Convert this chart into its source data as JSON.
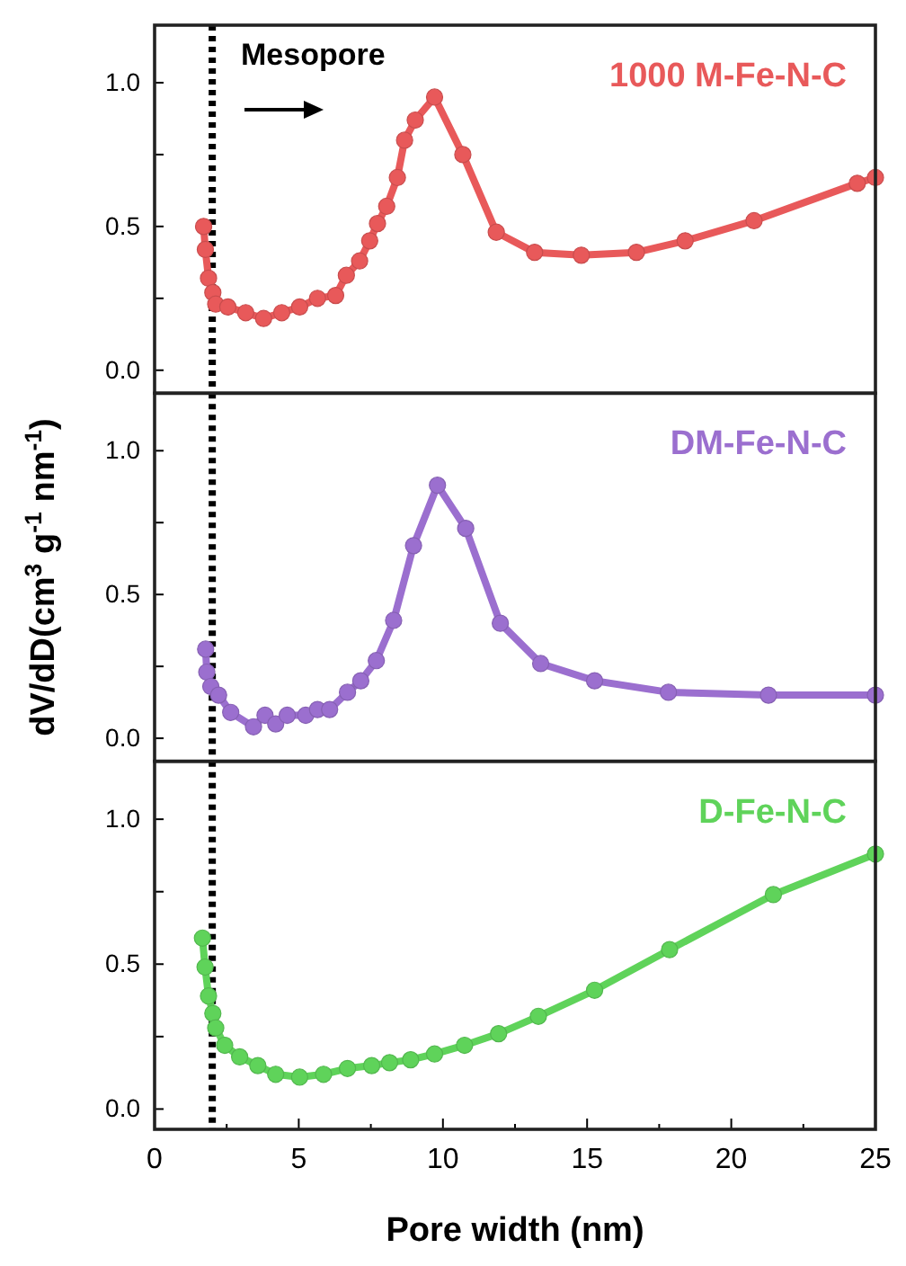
{
  "chart_data": [
    {
      "type": "line",
      "xlim": [
        0,
        25
      ],
      "ylim": [
        -0.08,
        1.2
      ],
      "yticks": [
        {
          "value": 0,
          "label": "0.0"
        },
        {
          "value": 0.25,
          "label": null
        },
        {
          "value": 0.5,
          "label": "0.5"
        },
        {
          "value": 0.75,
          "label": null
        },
        {
          "value": 1,
          "label": "1.0"
        }
      ],
      "tick_labels": "y",
      "marker": "circle",
      "grid": false,
      "annotations": [
        "Mesopore"
      ],
      "ref_lines": [
        {
          "axis": "x",
          "value": 2,
          "color": "#000000",
          "line_style": "dotted"
        }
      ],
      "series": [
        {
          "name": "1000 M-Fe-N-C",
          "color": "#e8595a",
          "x": [
            1.7,
            1.76,
            1.87,
            2.02,
            2.12,
            2.54,
            3.16,
            3.78,
            4.41,
            5.03,
            5.65,
            6.28,
            6.65,
            7.11,
            7.46,
            7.73,
            8.05,
            8.42,
            8.67,
            9.04,
            9.71,
            10.69,
            11.85,
            13.18,
            14.8,
            16.71,
            18.4,
            20.79,
            24.37,
            25
          ],
          "values": [
            0.5,
            0.42,
            0.32,
            0.27,
            0.23,
            0.22,
            0.2,
            0.18,
            0.2,
            0.22,
            0.25,
            0.26,
            0.33,
            0.38,
            0.45,
            0.51,
            0.57,
            0.67,
            0.8,
            0.87,
            0.95,
            0.75,
            0.48,
            0.41,
            0.4,
            0.41,
            0.45,
            0.52,
            0.65,
            0.67
          ]
        }
      ]
    },
    {
      "type": "line",
      "xlim": [
        0,
        25
      ],
      "ylim": [
        -0.08,
        1.2
      ],
      "yticks": [
        {
          "value": 0,
          "label": "0.0"
        },
        {
          "value": 0.25,
          "label": null
        },
        {
          "value": 0.5,
          "label": "0.5"
        },
        {
          "value": 0.75,
          "label": null
        },
        {
          "value": 1,
          "label": "1.0"
        }
      ],
      "tick_labels": "y",
      "marker": "circle",
      "grid": false,
      "ylabel": "dV/dD(cm$^{3}$ g$^{-1}$ nm$^{-1}$)",
      "ref_lines": [
        {
          "axis": "x",
          "value": 2,
          "color": "#000000",
          "line_style": "dotted"
        }
      ],
      "series": [
        {
          "name": "DM-Fe-N-C",
          "color": "#9b6fcf",
          "x": [
            1.77,
            1.81,
            1.95,
            2.22,
            2.64,
            3.43,
            3.83,
            4.2,
            4.6,
            5.24,
            5.65,
            6.07,
            6.69,
            7.15,
            7.69,
            8.29,
            8.98,
            9.81,
            10.79,
            11.99,
            13.39,
            15.26,
            17.82,
            21.29,
            25
          ],
          "values": [
            0.31,
            0.23,
            0.18,
            0.15,
            0.09,
            0.04,
            0.08,
            0.05,
            0.08,
            0.08,
            0.1,
            0.1,
            0.16,
            0.2,
            0.27,
            0.41,
            0.67,
            0.88,
            0.73,
            0.4,
            0.26,
            0.2,
            0.16,
            0.15,
            0.15
          ]
        }
      ]
    },
    {
      "type": "line",
      "xlim": [
        0,
        25
      ],
      "ylim": [
        -0.07,
        1.2
      ],
      "xticks": [
        0,
        {
          "value": 2.5,
          "label": null
        },
        5,
        {
          "value": 7.5,
          "label": null
        },
        10,
        {
          "value": 12.5,
          "label": null
        },
        15,
        {
          "value": 17.5,
          "label": null
        },
        20,
        {
          "value": 22.5,
          "label": null
        },
        25
      ],
      "yticks": [
        {
          "value": 0,
          "label": "0.0"
        },
        {
          "value": 0.25,
          "label": null
        },
        {
          "value": 0.5,
          "label": "0.5"
        },
        {
          "value": 0.75,
          "label": null
        },
        {
          "value": 1,
          "label": "1.0"
        }
      ],
      "marker": "circle",
      "grid": false,
      "xlabel": "Pore width (nm)",
      "ref_lines": [
        {
          "axis": "x",
          "value": 2,
          "color": "#000000",
          "line_style": "dotted"
        }
      ],
      "series": [
        {
          "name": "D-Fe-N-C",
          "color": "#5fd35a",
          "x": [
            1.66,
            1.75,
            1.87,
            2.02,
            2.12,
            2.43,
            2.95,
            3.58,
            4.2,
            5.03,
            5.86,
            6.69,
            7.53,
            8.15,
            8.88,
            9.71,
            10.75,
            11.93,
            13.31,
            15.26,
            17.86,
            21.46,
            25
          ],
          "values": [
            0.59,
            0.49,
            0.39,
            0.33,
            0.28,
            0.22,
            0.18,
            0.15,
            0.12,
            0.11,
            0.12,
            0.14,
            0.15,
            0.16,
            0.17,
            0.19,
            0.22,
            0.26,
            0.32,
            0.41,
            0.55,
            0.74,
            0.88
          ]
        }
      ]
    }
  ]
}
